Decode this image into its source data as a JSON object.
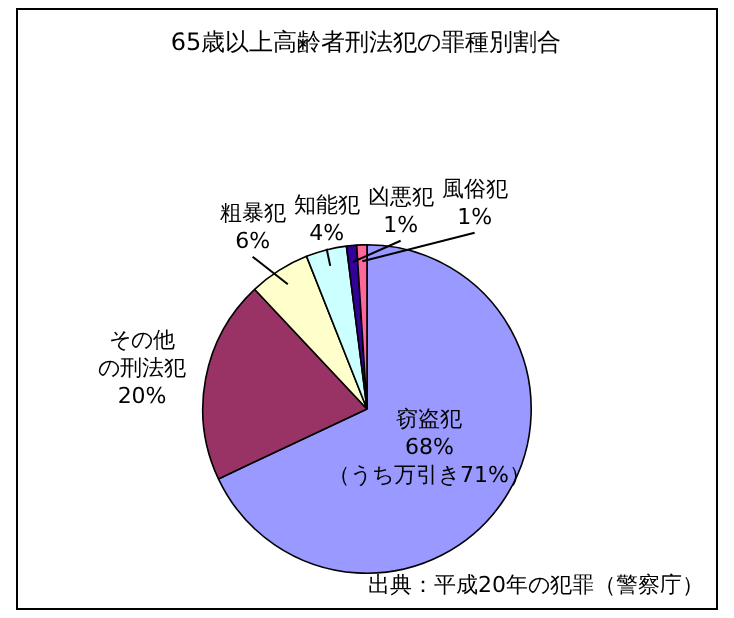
{
  "chart_data": {
    "type": "pie",
    "title": "65歳以上高齢者刑法犯の罪種別割合",
    "categories": [
      "窃盗犯",
      "その他の刑法犯",
      "粗暴犯",
      "知能犯",
      "凶悪犯",
      "風俗犯"
    ],
    "values": [
      68,
      20,
      6,
      4,
      1,
      1
    ],
    "colors": [
      "#9999ff",
      "#993366",
      "#ffffcc",
      "#ccffff",
      "#330099",
      "#ff6699"
    ],
    "annotations": [
      {
        "text": "（うち万引き71%）",
        "x": "窃盗犯"
      },
      "出典：平成20年の犯罪（警察庁）"
    ],
    "value_labels": [
      "68%",
      "20%",
      "6%",
      "4%",
      "1%",
      "1%"
    ],
    "legend": false
  }
}
